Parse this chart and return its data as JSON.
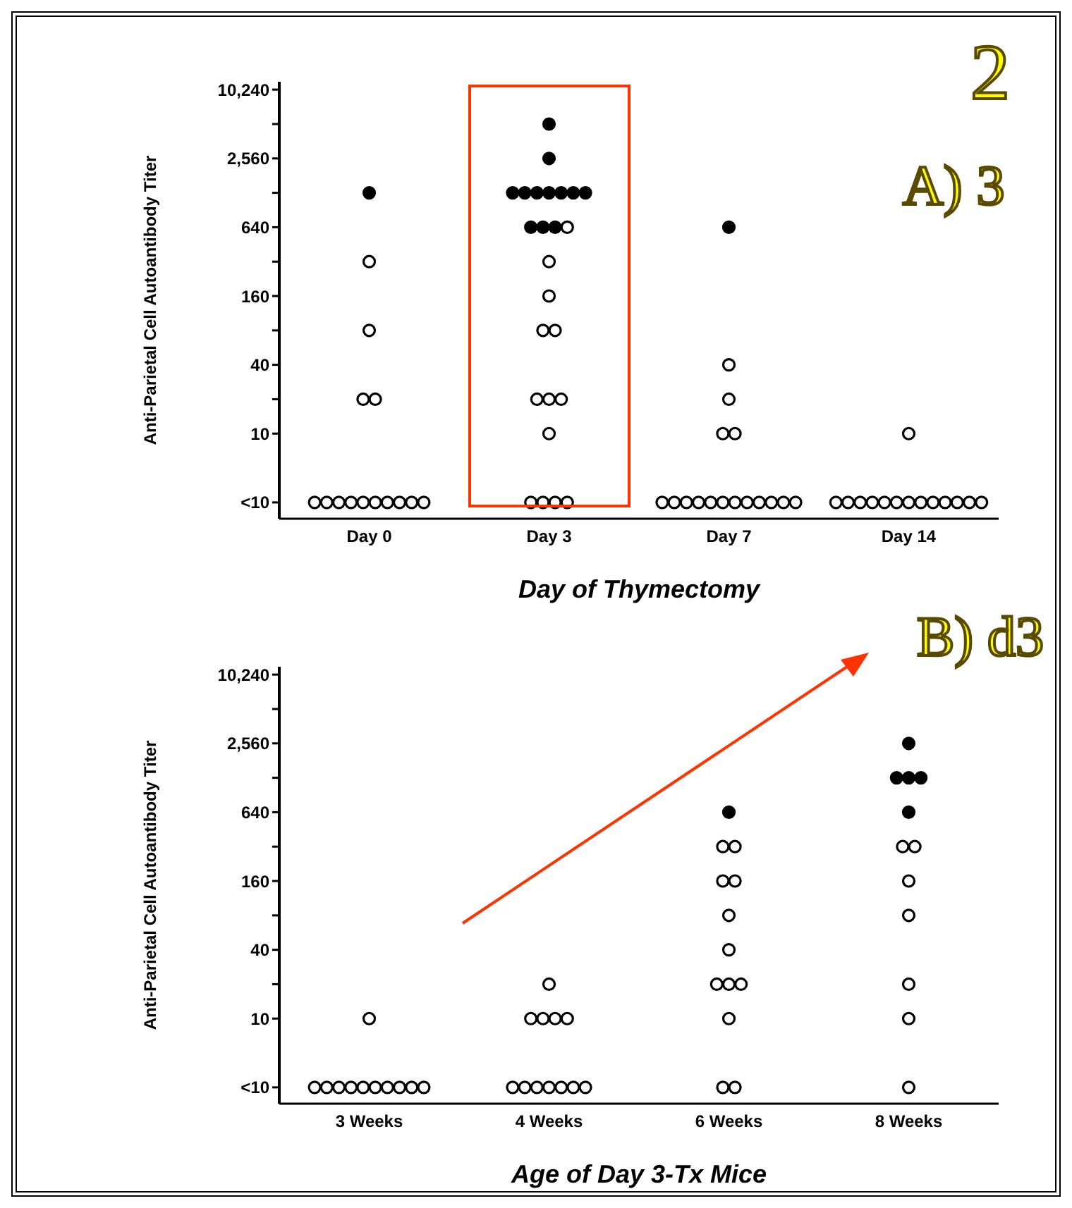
{
  "chart_data": [
    {
      "type": "scatter",
      "xlabel": "Day of Thymectomy",
      "ylabel": "Anti-Parietal Cell Autoantibody Titer",
      "categories": [
        "Day 0",
        "Day 3",
        "Day 7",
        "Day 14"
      ],
      "log": true,
      "marker": "circle",
      "ylim": [
        1.8,
        12000
      ],
      "yticks": [
        {
          "value": 2.5,
          "label": "<10"
        },
        10,
        {
          "value": 20,
          "label": null
        },
        40,
        {
          "value": 80,
          "label": null
        },
        160,
        {
          "value": 320,
          "label": null
        },
        640,
        {
          "value": 1280,
          "label": null
        },
        {
          "value": 2560,
          "label": "2,560"
        },
        {
          "value": 5120,
          "label": null
        },
        {
          "value": 10240,
          "label": "10,240"
        }
      ],
      "series": [
        {
          "color": "#000000",
          "x": [
            "Day 0",
            "Day 3",
            "Day 3",
            "Day 3",
            "Day 3",
            "Day 3",
            "Day 3",
            "Day 3",
            "Day 3",
            "Day 3",
            "Day 3",
            "Day 3",
            "Day 3",
            "Day 7"
          ],
          "values": [
            1280,
            5120,
            2560,
            1280,
            1280,
            1280,
            1280,
            1280,
            1280,
            1280,
            640,
            640,
            640,
            640
          ]
        },
        {
          "color": "#ffffff",
          "x": [
            "Day 0",
            "Day 0",
            "Day 0",
            "Day 0",
            "Day 0",
            "Day 0",
            "Day 0",
            "Day 0",
            "Day 0",
            "Day 0",
            "Day 0",
            "Day 0",
            "Day 0",
            "Day 0",
            "Day 3",
            "Day 3",
            "Day 3",
            "Day 3",
            "Day 3",
            "Day 3",
            "Day 3",
            "Day 3",
            "Day 3",
            "Day 3",
            "Day 3",
            "Day 3",
            "Day 3",
            "Day 7",
            "Day 7",
            "Day 7",
            "Day 7",
            "Day 7",
            "Day 7",
            "Day 7",
            "Day 7",
            "Day 7",
            "Day 7",
            "Day 7",
            "Day 7",
            "Day 7",
            "Day 7",
            "Day 7",
            "Day 7",
            "Day 14",
            "Day 14",
            "Day 14",
            "Day 14",
            "Day 14",
            "Day 14",
            "Day 14",
            "Day 14",
            "Day 14",
            "Day 14",
            "Day 14",
            "Day 14",
            "Day 14",
            "Day 14"
          ],
          "values": [
            320,
            80,
            20,
            20,
            2.5,
            2.5,
            2.5,
            2.5,
            2.5,
            2.5,
            2.5,
            2.5,
            2.5,
            2.5,
            640,
            320,
            160,
            80,
            80,
            20,
            20,
            20,
            10,
            2.5,
            2.5,
            2.5,
            2.5,
            40,
            20,
            10,
            10,
            2.5,
            2.5,
            2.5,
            2.5,
            2.5,
            2.5,
            2.5,
            2.5,
            2.5,
            2.5,
            2.5,
            2.5,
            10,
            2.5,
            2.5,
            2.5,
            2.5,
            2.5,
            2.5,
            2.5,
            2.5,
            2.5,
            2.5,
            2.5,
            2.5,
            2.5
          ]
        }
      ],
      "annotations": [
        "2",
        "A) 3"
      ]
    },
    {
      "type": "scatter",
      "xlabel": "Age of Day 3-Tx Mice",
      "ylabel": "Anti-Parietal Cell Autoantibody Titer",
      "categories": [
        "3 Weeks",
        "4 Weeks",
        "6 Weeks",
        "8 Weeks"
      ],
      "log": true,
      "marker": "circle",
      "ylim": [
        1.8,
        12000
      ],
      "yticks": [
        {
          "value": 2.5,
          "label": "<10"
        },
        10,
        {
          "value": 20,
          "label": null
        },
        40,
        {
          "value": 80,
          "label": null
        },
        160,
        {
          "value": 320,
          "label": null
        },
        640,
        {
          "value": 1280,
          "label": null
        },
        {
          "value": 2560,
          "label": "2,560"
        },
        {
          "value": 5120,
          "label": null
        },
        {
          "value": 10240,
          "label": "10,240"
        }
      ],
      "series": [
        {
          "color": "#000000",
          "x": [
            "6 Weeks",
            "8 Weeks",
            "8 Weeks",
            "8 Weeks",
            "8 Weeks",
            "8 Weeks"
          ],
          "values": [
            640,
            2560,
            1280,
            1280,
            1280,
            640
          ]
        },
        {
          "color": "#ffffff",
          "x": [
            "3 Weeks",
            "3 Weeks",
            "3 Weeks",
            "3 Weeks",
            "3 Weeks",
            "3 Weeks",
            "3 Weeks",
            "3 Weeks",
            "3 Weeks",
            "3 Weeks",
            "3 Weeks",
            "4 Weeks",
            "4 Weeks",
            "4 Weeks",
            "4 Weeks",
            "4 Weeks",
            "4 Weeks",
            "4 Weeks",
            "4 Weeks",
            "4 Weeks",
            "4 Weeks",
            "4 Weeks",
            "4 Weeks",
            "6 Weeks",
            "6 Weeks",
            "6 Weeks",
            "6 Weeks",
            "6 Weeks",
            "6 Weeks",
            "6 Weeks",
            "6 Weeks",
            "6 Weeks",
            "6 Weeks",
            "6 Weeks",
            "6 Weeks",
            "8 Weeks",
            "8 Weeks",
            "8 Weeks",
            "8 Weeks",
            "8 Weeks",
            "8 Weeks",
            "8 Weeks"
          ],
          "values": [
            10,
            2.5,
            2.5,
            2.5,
            2.5,
            2.5,
            2.5,
            2.5,
            2.5,
            2.5,
            2.5,
            20,
            10,
            10,
            10,
            10,
            2.5,
            2.5,
            2.5,
            2.5,
            2.5,
            2.5,
            2.5,
            320,
            320,
            160,
            160,
            80,
            40,
            20,
            20,
            20,
            10,
            2.5,
            2.5,
            320,
            320,
            160,
            80,
            20,
            10,
            2.5
          ]
        }
      ],
      "annotations": [
        "B) d3"
      ]
    }
  ]
}
